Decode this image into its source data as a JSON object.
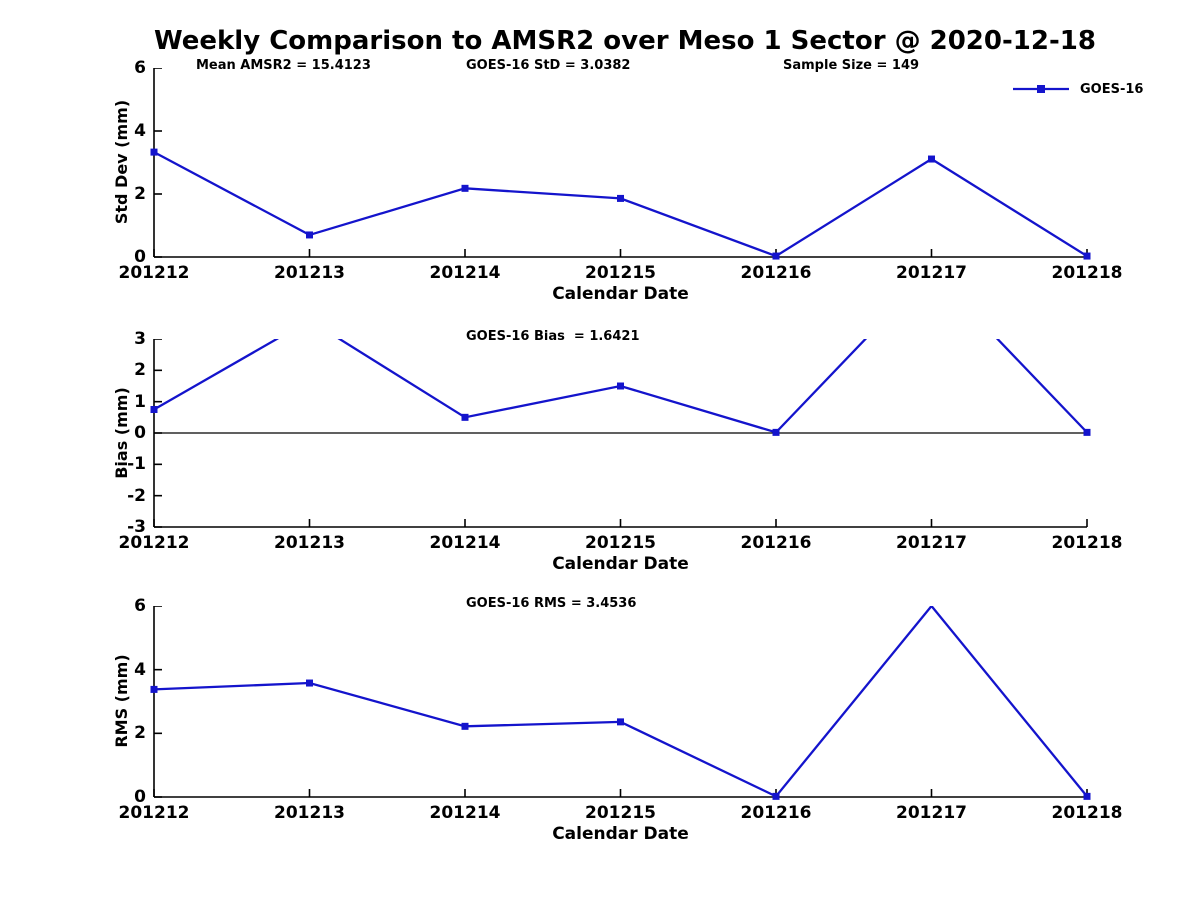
{
  "title": "Weekly Comparison to AMSR2 over Meso 1 Sector @ 2020-12-18",
  "colors": {
    "line": "#1414cc",
    "axis": "#000000",
    "text": "#000000",
    "background": "#ffffff"
  },
  "chart_data": [
    {
      "type": "line",
      "name": "std-dev",
      "categories": [
        "201212",
        "201213",
        "201214",
        "201215",
        "201216",
        "201217",
        "201218"
      ],
      "series": [
        {
          "name": "GOES-16",
          "values": [
            3.33,
            0.7,
            2.18,
            1.86,
            0.03,
            3.11,
            0.03
          ]
        }
      ],
      "xlabel": "Calendar Date",
      "ylabel": "Std Dev (mm)",
      "ylim": [
        0,
        6
      ],
      "yticks": [
        0,
        2,
        4,
        6
      ],
      "grid": false,
      "marker": "square",
      "legend_position": "top-right",
      "annotations": [
        "Mean AMSR2 = 15.4123",
        "GOES-16 StD = 3.0382",
        "Sample Size = 149"
      ]
    },
    {
      "type": "line",
      "name": "bias",
      "categories": [
        "201212",
        "201213",
        "201214",
        "201215",
        "201216",
        "201217",
        "201218"
      ],
      "series": [
        {
          "name": "GOES-16",
          "values": [
            0.75,
            3.6,
            0.5,
            1.5,
            0.02,
            5.2,
            0.02
          ]
        }
      ],
      "xlabel": "Calendar Date",
      "ylabel": "Bias (mm)",
      "ylim": [
        -3,
        3
      ],
      "yticks": [
        -3,
        -2,
        -1,
        0,
        1,
        2,
        3
      ],
      "grid": false,
      "marker": "square",
      "zero_line": true,
      "clip_note": "values above ylim max are clipped at top of axes",
      "annotations": [
        "GOES-16 Bias  = 1.6421"
      ]
    },
    {
      "type": "line",
      "name": "rms",
      "categories": [
        "201212",
        "201213",
        "201214",
        "201215",
        "201216",
        "201217",
        "201218"
      ],
      "series": [
        {
          "name": "GOES-16",
          "values": [
            3.38,
            3.58,
            2.22,
            2.36,
            0.02,
            6.0,
            0.02
          ]
        }
      ],
      "xlabel": "Calendar Date",
      "ylabel": "RMS (mm)",
      "ylim": [
        0,
        6
      ],
      "yticks": [
        0,
        2,
        4,
        6
      ],
      "grid": false,
      "marker": "square",
      "annotations": [
        "GOES-16 RMS = 3.4536"
      ]
    }
  ]
}
